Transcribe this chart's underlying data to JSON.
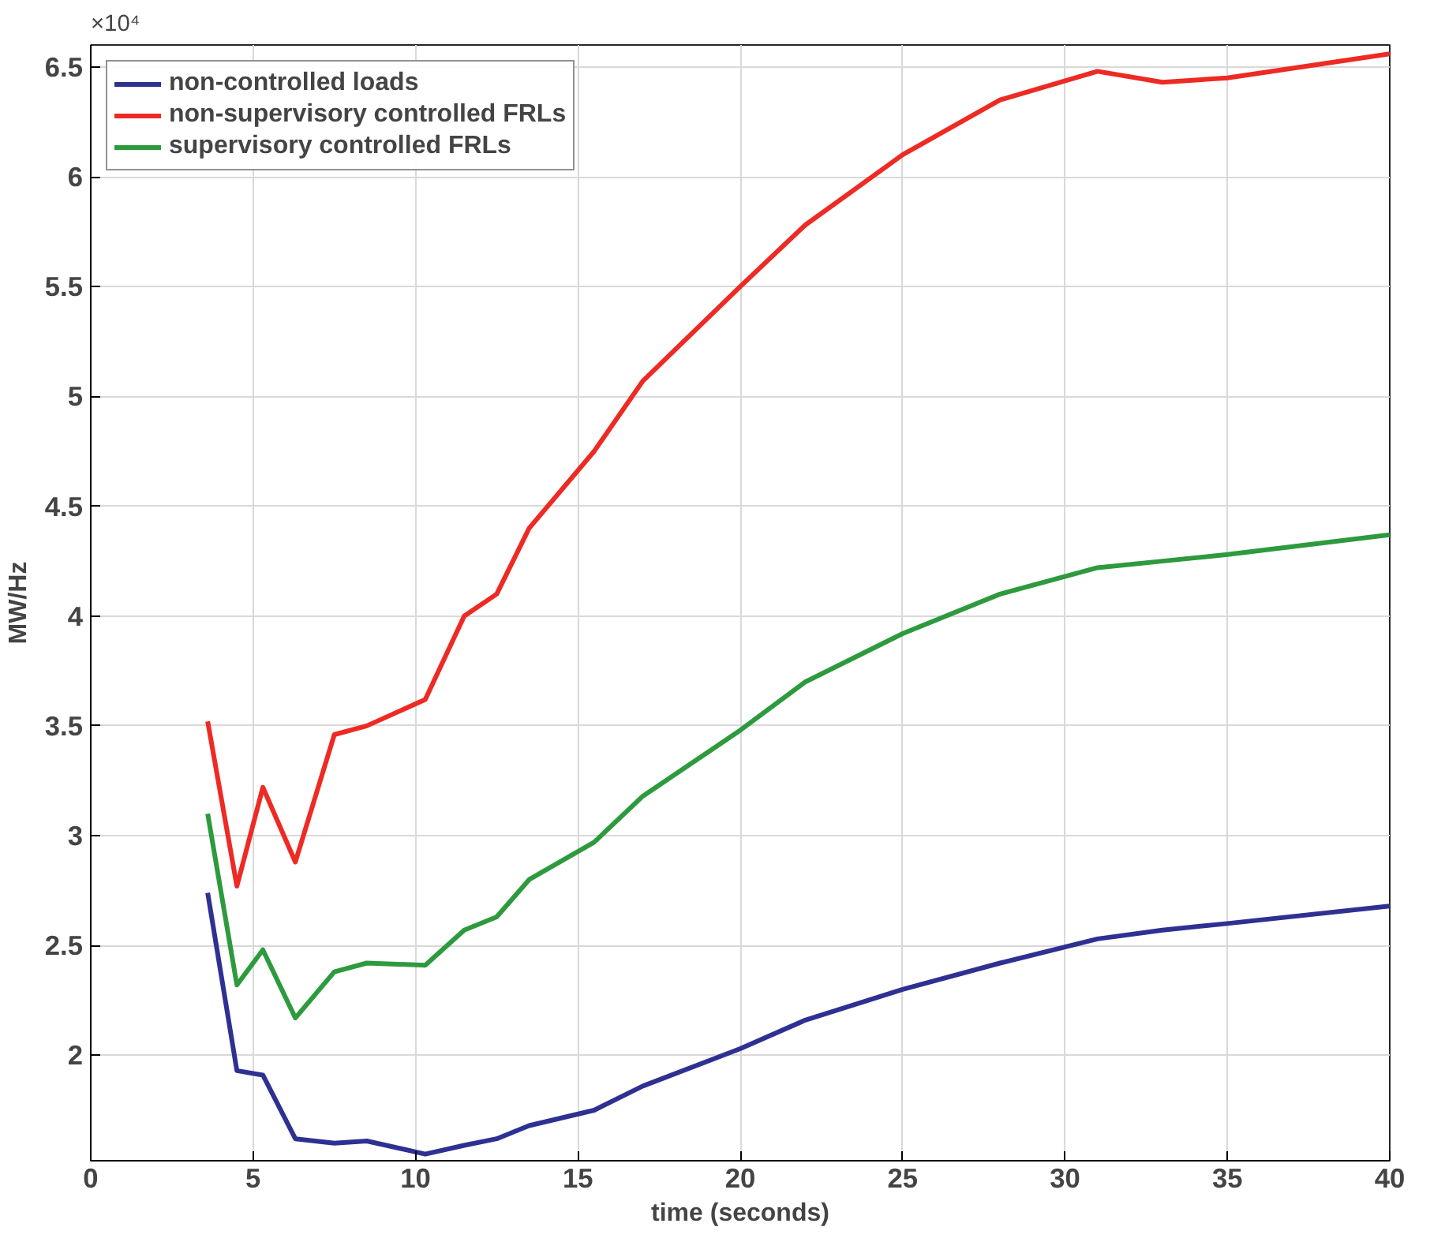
{
  "chart_data": {
    "type": "line",
    "xlabel": "time (seconds)",
    "ylabel": "MW/Hz",
    "annotations": [
      "×10⁴"
    ],
    "xlim": [
      0,
      40
    ],
    "xticks": [
      0,
      5,
      10,
      15,
      20,
      25,
      30,
      35,
      40
    ],
    "ylim": [
      1.52,
      6.6
    ],
    "yticks": [
      2,
      2.5,
      3,
      3.5,
      4,
      4.5,
      5,
      5.5,
      6,
      6.5
    ],
    "grid": true,
    "legend": "top left",
    "marker": "none",
    "line_style": "solid",
    "x": [
      3.6,
      4.5,
      5.3,
      6.3,
      7.5,
      8.5,
      10.3,
      11.5,
      12.5,
      13.5,
      15.5,
      17,
      20,
      22,
      25,
      28,
      31,
      33,
      35,
      40
    ],
    "series": [
      {
        "name": "non-controlled loads",
        "color": "#2e3192",
        "values": [
          2.74,
          1.93,
          1.91,
          1.62,
          1.6,
          1.61,
          1.55,
          1.59,
          1.62,
          1.68,
          1.75,
          1.86,
          2.03,
          2.16,
          2.3,
          2.42,
          2.53,
          2.57,
          2.6,
          2.68
        ]
      },
      {
        "name": "non-supervisory controlled FRLs",
        "color": "#ee2a24",
        "values": [
          3.52,
          2.77,
          3.22,
          2.88,
          3.46,
          3.5,
          3.62,
          4.0,
          4.1,
          4.4,
          4.75,
          5.07,
          5.5,
          5.78,
          6.1,
          6.35,
          6.48,
          6.43,
          6.45,
          6.56
        ]
      },
      {
        "name": "supervisory controlled FRLs",
        "color": "#2e9a3e",
        "values": [
          3.1,
          2.32,
          2.48,
          2.17,
          2.38,
          2.42,
          2.41,
          2.57,
          2.63,
          2.8,
          2.97,
          3.18,
          3.48,
          3.7,
          3.92,
          4.1,
          4.22,
          4.25,
          4.28,
          4.37
        ]
      }
    ]
  }
}
